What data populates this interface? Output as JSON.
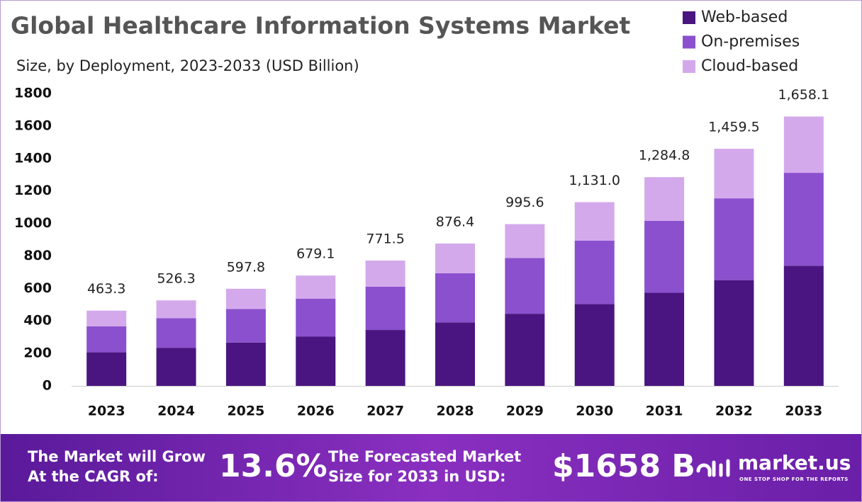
{
  "chart_data": {
    "type": "stacked-bar",
    "title": "Global Healthcare Information Systems Market",
    "subtitle": "Size, by Deployment, 2023-2033 (USD Billion)",
    "categories": [
      "2023",
      "2024",
      "2025",
      "2026",
      "2027",
      "2028",
      "2029",
      "2030",
      "2031",
      "2032",
      "2033"
    ],
    "series": [
      {
        "name": "Web-based",
        "color": "#4a1580",
        "values": [
          206.6,
          234.7,
          266.6,
          302.9,
          344.1,
          390.9,
          444.0,
          504.4,
          573.0,
          650.9,
          739.5
        ]
      },
      {
        "name": "On-premises",
        "color": "#8b50cd",
        "values": [
          159.8,
          181.6,
          206.2,
          234.3,
          266.2,
          302.4,
          343.5,
          390.2,
          443.3,
          503.5,
          572.0
        ]
      },
      {
        "name": "Cloud-based",
        "color": "#d3a9ec",
        "values": [
          96.9,
          110.0,
          125.0,
          141.9,
          161.2,
          183.1,
          208.1,
          236.4,
          268.5,
          305.1,
          346.6
        ]
      }
    ],
    "totals": {
      "values": [
        463.3,
        526.3,
        597.8,
        679.1,
        771.5,
        876.4,
        995.6,
        1131.0,
        1284.8,
        1459.5,
        1658.1
      ],
      "value_labels": [
        "463.3",
        "526.3",
        "597.8",
        "679.1",
        "771.5",
        "876.4",
        "995.6",
        "1,131.0",
        "1,284.8",
        "1,459.5",
        "1,658.1"
      ]
    },
    "ylim": [
      0,
      1800
    ],
    "yticks": [
      0,
      200,
      400,
      600,
      800,
      1000,
      1200,
      1400,
      1600,
      1800
    ],
    "grid": false,
    "legend": "top-right"
  },
  "footer": {
    "cagr_text": [
      "The Market will Grow",
      "At the CAGR of:"
    ],
    "cagr": "13.6%",
    "forecast_text": [
      "The Forecasted Market",
      "Size for 2033 in USD:"
    ],
    "forecast": "$1658 B",
    "brand": "market.us",
    "tagline": "ONE STOP SHOP FOR THE REPORTS"
  }
}
